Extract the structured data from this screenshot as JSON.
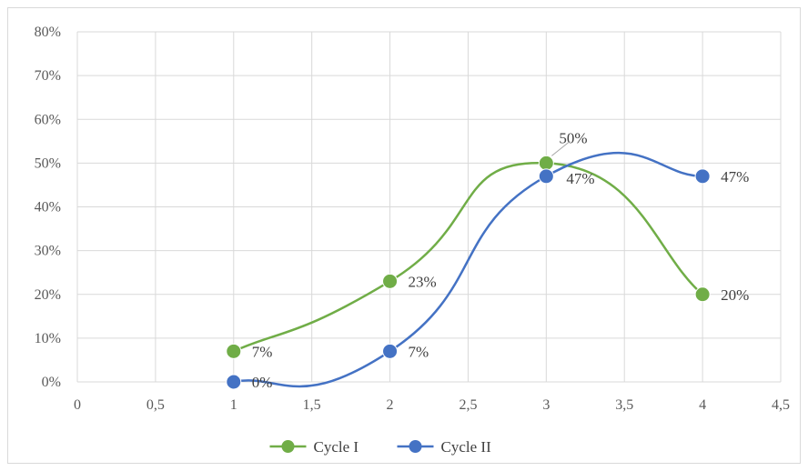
{
  "chart_data": {
    "type": "line",
    "title": "",
    "xlabel": "",
    "ylabel": "",
    "xlim": [
      0,
      4.5
    ],
    "ylim": [
      0,
      80
    ],
    "x_ticks": [
      0,
      0.5,
      1,
      1.5,
      2,
      2.5,
      3,
      3.5,
      4,
      4.5
    ],
    "x_tick_labels": [
      "0",
      "0,5",
      "1",
      "1,5",
      "2",
      "2,5",
      "3",
      "3,5",
      "4",
      "4,5"
    ],
    "y_ticks": [
      0,
      10,
      20,
      30,
      40,
      50,
      60,
      70,
      80
    ],
    "y_tick_labels": [
      "0%",
      "10%",
      "20%",
      "30%",
      "40%",
      "50%",
      "60%",
      "70%",
      "80%"
    ],
    "grid": true,
    "smooth": true,
    "legend_position": "bottom",
    "series": [
      {
        "name": "Cycle I",
        "color": "#70ad47",
        "x": [
          1,
          2,
          3,
          4
        ],
        "y": [
          7,
          23,
          50,
          20
        ],
        "labels": [
          "7%",
          "23%",
          "50%",
          "20%"
        ]
      },
      {
        "name": "Cycle II",
        "color": "#4472c4",
        "x": [
          1,
          2,
          3,
          4
        ],
        "y": [
          0,
          7,
          47,
          47
        ],
        "labels": [
          "0%",
          "7%",
          "47%",
          "47%"
        ]
      }
    ]
  }
}
